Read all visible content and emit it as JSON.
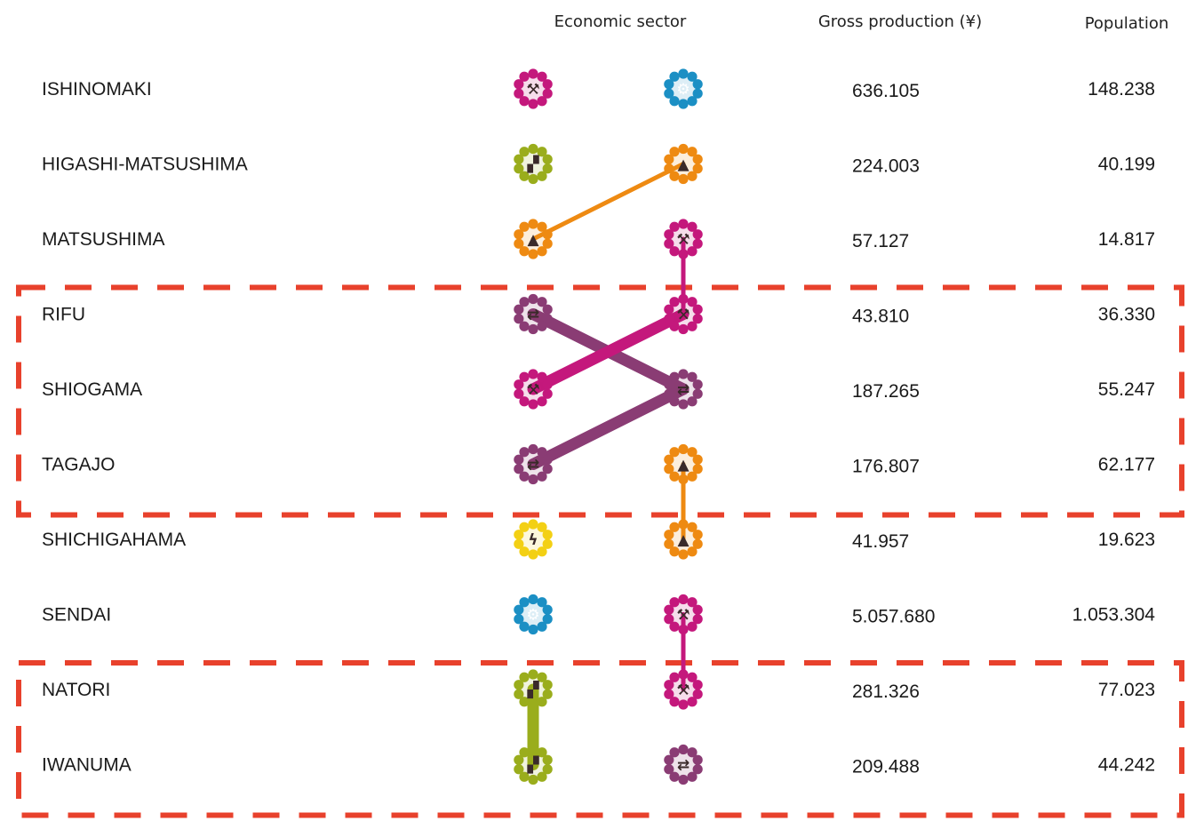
{
  "headers": {
    "sector": "Economic sector",
    "production": "Gross production (¥)",
    "population": "Population"
  },
  "colors": {
    "frame": "#e8412c",
    "primary": "#c4187c",
    "tertiary": "#1b8fc4",
    "agriculture": "#9aad1c",
    "tourism": "#ee8a12",
    "commerce": "#8a3c74",
    "energy": "#f3d014",
    "text": "#1a1a1a"
  },
  "sectors": {
    "primary": {
      "icon": "construction-icon",
      "glyph": "⚒"
    },
    "tertiary": {
      "icon": "knowledge-head-icon",
      "glyph": "⚙"
    },
    "agriculture": {
      "icon": "tractor-icon",
      "glyph": "▞"
    },
    "tourism": {
      "icon": "pagoda-icon",
      "glyph": "▲"
    },
    "commerce": {
      "icon": "exchange-arrows-icon",
      "glyph": "⇄"
    },
    "energy": {
      "icon": "lightning-icon",
      "glyph": "ϟ"
    }
  },
  "rows": [
    {
      "name": "ISHINOMAKI",
      "production": "636.105",
      "population": "148.238",
      "left": "primary",
      "right": "tertiary"
    },
    {
      "name": "HIGASHI-MATSUSHIMA",
      "production": "224.003",
      "population": "40.199",
      "left": "agriculture",
      "right": "tourism"
    },
    {
      "name": "MATSUSHIMA",
      "production": "57.127",
      "population": "14.817",
      "left": "tourism",
      "right": "primary"
    },
    {
      "name": "RIFU",
      "production": "43.810",
      "population": "36.330",
      "left": "commerce",
      "right": "primary"
    },
    {
      "name": "SHIOGAMA",
      "production": "187.265",
      "population": "55.247",
      "left": "primary",
      "right": "commerce"
    },
    {
      "name": "TAGAJO",
      "production": "176.807",
      "population": "62.177",
      "left": "commerce",
      "right": "tourism"
    },
    {
      "name": "SHICHIGAHAMA",
      "production": "41.957",
      "population": "19.623",
      "left": "energy",
      "right": "tourism"
    },
    {
      "name": "SENDAI",
      "production": "5.057.680",
      "population": "1.053.304",
      "left": "tertiary",
      "right": "primary"
    },
    {
      "name": "NATORI",
      "production": "281.326",
      "population": "77.023",
      "left": "agriculture",
      "right": "primary"
    },
    {
      "name": "IWANUMA",
      "production": "209.488",
      "population": "44.242",
      "left": "agriculture",
      "right": "commerce"
    }
  ],
  "links": [
    {
      "from": {
        "row": 2,
        "col": "left"
      },
      "to": {
        "row": 1,
        "col": "right"
      },
      "sector": "tourism",
      "weight": "thin"
    },
    {
      "from": {
        "row": 2,
        "col": "right"
      },
      "to": {
        "row": 3,
        "col": "right"
      },
      "sector": "primary",
      "weight": "thin"
    },
    {
      "from": {
        "row": 3,
        "col": "left"
      },
      "to": {
        "row": 4,
        "col": "right"
      },
      "sector": "commerce",
      "weight": "thick"
    },
    {
      "from": {
        "row": 4,
        "col": "left"
      },
      "to": {
        "row": 3,
        "col": "right"
      },
      "sector": "primary",
      "weight": "thick"
    },
    {
      "from": {
        "row": 5,
        "col": "left"
      },
      "to": {
        "row": 4,
        "col": "right"
      },
      "sector": "commerce",
      "weight": "thick"
    },
    {
      "from": {
        "row": 5,
        "col": "right"
      },
      "to": {
        "row": 6,
        "col": "right"
      },
      "sector": "tourism",
      "weight": "thin"
    },
    {
      "from": {
        "row": 7,
        "col": "right"
      },
      "to": {
        "row": 8,
        "col": "right"
      },
      "sector": "primary",
      "weight": "thin"
    },
    {
      "from": {
        "row": 8,
        "col": "left"
      },
      "to": {
        "row": 9,
        "col": "left"
      },
      "sector": "agriculture",
      "weight": "thick"
    }
  ],
  "groups": [
    {
      "name": "group-rifu-shiogama-tagajo",
      "first_row": 3,
      "last_row": 5
    },
    {
      "name": "group-natori-iwanuma",
      "first_row": 8,
      "last_row": 9
    }
  ]
}
